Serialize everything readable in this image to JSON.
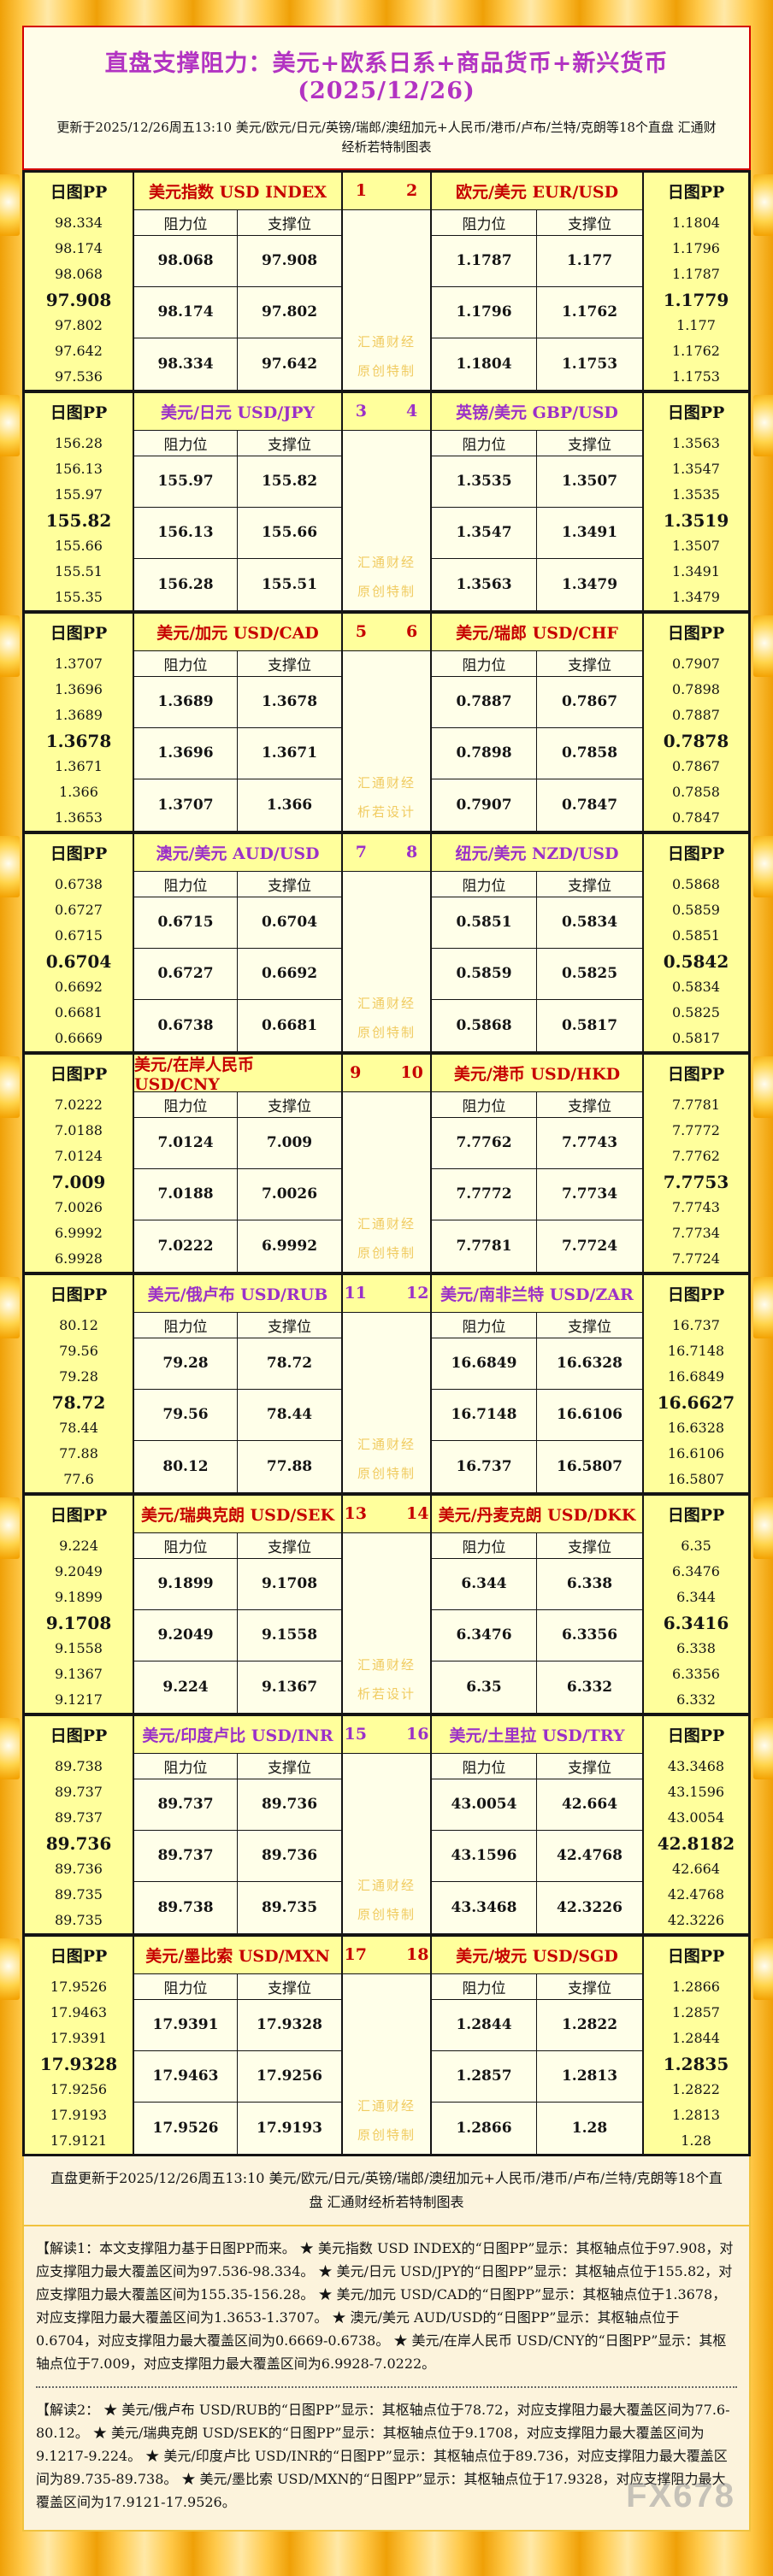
{
  "header": {
    "title": "直盘支撑阻力：美元+欧系日系+商品货币+新兴货币(2025/12/26)",
    "subtitle": "更新于2025/12/26周五13:10 美元/欧元/日元/英镑/瑞郎/澳纽加元+人民币/港币/卢布/兰特/克朗等18个直盘 汇通财经析若特制图表"
  },
  "labels": {
    "pp_header": "日图PP",
    "resistance": "阻力位",
    "support": "支撑位",
    "watermark_line1": "汇通财经"
  },
  "colors": {
    "red_accent": "#C60000",
    "purple_accent": "#9B30C8",
    "title_magenta": "#B233C2",
    "pp_column_yellow": "#FFFF9C",
    "cell_ivory": "#FFFFE9",
    "gold_watermark": "#F0CB60"
  },
  "chart_data": {
    "type": "table",
    "title": "直盘支撑阻力：美元+欧系日系+商品货币+新兴货币(2025/12/26)",
    "columns": [
      "日图PP",
      "阻力位",
      "支撑位"
    ],
    "sections": [
      {
        "num_left": "1",
        "num_right": "2",
        "accent": "red",
        "left_pair": "美元指数 USD INDEX",
        "right_pair": "欧元/美元 EUR/USD",
        "watermark_line2": "原创特制",
        "left_pp": [
          "98.334",
          "98.174",
          "98.068",
          "97.908",
          "97.802",
          "97.642",
          "97.536"
        ],
        "left_rs": [
          [
            "98.068",
            "97.908"
          ],
          [
            "98.174",
            "97.802"
          ],
          [
            "98.334",
            "97.642"
          ]
        ],
        "right_rs": [
          [
            "1.1787",
            "1.177"
          ],
          [
            "1.1796",
            "1.1762"
          ],
          [
            "1.1804",
            "1.1753"
          ]
        ],
        "right_pp": [
          "1.1804",
          "1.1796",
          "1.1787",
          "1.1779",
          "1.177",
          "1.1762",
          "1.1753"
        ]
      },
      {
        "num_left": "3",
        "num_right": "4",
        "accent": "purple",
        "left_pair": "美元/日元 USD/JPY",
        "right_pair": "英镑/美元 GBP/USD",
        "watermark_line2": "原创特制",
        "left_pp": [
          "156.28",
          "156.13",
          "155.97",
          "155.82",
          "155.66",
          "155.51",
          "155.35"
        ],
        "left_rs": [
          [
            "155.97",
            "155.82"
          ],
          [
            "156.13",
            "155.66"
          ],
          [
            "156.28",
            "155.51"
          ]
        ],
        "right_rs": [
          [
            "1.3535",
            "1.3507"
          ],
          [
            "1.3547",
            "1.3491"
          ],
          [
            "1.3563",
            "1.3479"
          ]
        ],
        "right_pp": [
          "1.3563",
          "1.3547",
          "1.3535",
          "1.3519",
          "1.3507",
          "1.3491",
          "1.3479"
        ]
      },
      {
        "num_left": "5",
        "num_right": "6",
        "accent": "red",
        "left_pair": "美元/加元 USD/CAD",
        "right_pair": "美元/瑞郎 USD/CHF",
        "watermark_line2": "析若设计",
        "left_pp": [
          "1.3707",
          "1.3696",
          "1.3689",
          "1.3678",
          "1.3671",
          "1.366",
          "1.3653"
        ],
        "left_rs": [
          [
            "1.3689",
            "1.3678"
          ],
          [
            "1.3696",
            "1.3671"
          ],
          [
            "1.3707",
            "1.366"
          ]
        ],
        "right_rs": [
          [
            "0.7887",
            "0.7867"
          ],
          [
            "0.7898",
            "0.7858"
          ],
          [
            "0.7907",
            "0.7847"
          ]
        ],
        "right_pp": [
          "0.7907",
          "0.7898",
          "0.7887",
          "0.7878",
          "0.7867",
          "0.7858",
          "0.7847"
        ]
      },
      {
        "num_left": "7",
        "num_right": "8",
        "accent": "purple",
        "left_pair": "澳元/美元 AUD/USD",
        "right_pair": "纽元/美元 NZD/USD",
        "watermark_line2": "原创特制",
        "left_pp": [
          "0.6738",
          "0.6727",
          "0.6715",
          "0.6704",
          "0.6692",
          "0.6681",
          "0.6669"
        ],
        "left_rs": [
          [
            "0.6715",
            "0.6704"
          ],
          [
            "0.6727",
            "0.6692"
          ],
          [
            "0.6738",
            "0.6681"
          ]
        ],
        "right_rs": [
          [
            "0.5851",
            "0.5834"
          ],
          [
            "0.5859",
            "0.5825"
          ],
          [
            "0.5868",
            "0.5817"
          ]
        ],
        "right_pp": [
          "0.5868",
          "0.5859",
          "0.5851",
          "0.5842",
          "0.5834",
          "0.5825",
          "0.5817"
        ]
      },
      {
        "num_left": "9",
        "num_right": "10",
        "accent": "red",
        "left_pair": "美元/在岸人民币 USD/CNY",
        "right_pair": "美元/港币 USD/HKD",
        "watermark_line2": "原创特制",
        "left_pp": [
          "7.0222",
          "7.0188",
          "7.0124",
          "7.009",
          "7.0026",
          "6.9992",
          "6.9928"
        ],
        "left_rs": [
          [
            "7.0124",
            "7.009"
          ],
          [
            "7.0188",
            "7.0026"
          ],
          [
            "7.0222",
            "6.9992"
          ]
        ],
        "right_rs": [
          [
            "7.7762",
            "7.7743"
          ],
          [
            "7.7772",
            "7.7734"
          ],
          [
            "7.7781",
            "7.7724"
          ]
        ],
        "right_pp": [
          "7.7781",
          "7.7772",
          "7.7762",
          "7.7753",
          "7.7743",
          "7.7734",
          "7.7724"
        ]
      },
      {
        "num_left": "11",
        "num_right": "12",
        "accent": "purple",
        "left_pair": "美元/俄卢布 USD/RUB",
        "right_pair": "美元/南非兰特 USD/ZAR",
        "watermark_line2": "原创特制",
        "left_pp": [
          "80.12",
          "79.56",
          "79.28",
          "78.72",
          "78.44",
          "77.88",
          "77.6"
        ],
        "left_rs": [
          [
            "79.28",
            "78.72"
          ],
          [
            "79.56",
            "78.44"
          ],
          [
            "80.12",
            "77.88"
          ]
        ],
        "right_rs": [
          [
            "16.6849",
            "16.6328"
          ],
          [
            "16.7148",
            "16.6106"
          ],
          [
            "16.737",
            "16.5807"
          ]
        ],
        "right_pp": [
          "16.737",
          "16.7148",
          "16.6849",
          "16.6627",
          "16.6328",
          "16.6106",
          "16.5807"
        ]
      },
      {
        "num_left": "13",
        "num_right": "14",
        "accent": "red",
        "left_pair": "美元/瑞典克朗 USD/SEK",
        "right_pair": "美元/丹麦克朗 USD/DKK",
        "watermark_line2": "析若设计",
        "left_pp": [
          "9.224",
          "9.2049",
          "9.1899",
          "9.1708",
          "9.1558",
          "9.1367",
          "9.1217"
        ],
        "left_rs": [
          [
            "9.1899",
            "9.1708"
          ],
          [
            "9.2049",
            "9.1558"
          ],
          [
            "9.224",
            "9.1367"
          ]
        ],
        "right_rs": [
          [
            "6.344",
            "6.338"
          ],
          [
            "6.3476",
            "6.3356"
          ],
          [
            "6.35",
            "6.332"
          ]
        ],
        "right_pp": [
          "6.35",
          "6.3476",
          "6.344",
          "6.3416",
          "6.338",
          "6.3356",
          "6.332"
        ]
      },
      {
        "num_left": "15",
        "num_right": "16",
        "accent": "purple",
        "left_pair": "美元/印度卢比 USD/INR",
        "right_pair": "美元/土里拉 USD/TRY",
        "watermark_line2": "原创特制",
        "left_pp": [
          "89.738",
          "89.737",
          "89.737",
          "89.736",
          "89.736",
          "89.735",
          "89.735"
        ],
        "left_rs": [
          [
            "89.737",
            "89.736"
          ],
          [
            "89.737",
            "89.736"
          ],
          [
            "89.738",
            "89.735"
          ]
        ],
        "right_rs": [
          [
            "43.0054",
            "42.664"
          ],
          [
            "43.1596",
            "42.4768"
          ],
          [
            "43.3468",
            "42.3226"
          ]
        ],
        "right_pp": [
          "43.3468",
          "43.1596",
          "43.0054",
          "42.8182",
          "42.664",
          "42.4768",
          "42.3226"
        ]
      },
      {
        "num_left": "17",
        "num_right": "18",
        "accent": "red",
        "left_pair": "美元/墨比索 USD/MXN",
        "right_pair": "美元/坡元 USD/SGD",
        "watermark_line2": "原创特制",
        "left_pp": [
          "17.9526",
          "17.9463",
          "17.9391",
          "17.9328",
          "17.9256",
          "17.9193",
          "17.9121"
        ],
        "left_rs": [
          [
            "17.9391",
            "17.9328"
          ],
          [
            "17.9463",
            "17.9256"
          ],
          [
            "17.9526",
            "17.9193"
          ]
        ],
        "right_rs": [
          [
            "1.2844",
            "1.2822"
          ],
          [
            "1.2857",
            "1.2813"
          ],
          [
            "1.2866",
            "1.28"
          ]
        ],
        "right_pp": [
          "1.2866",
          "1.2857",
          "1.2844",
          "1.2835",
          "1.2822",
          "1.2813",
          "1.28"
        ]
      }
    ]
  },
  "footer": {
    "update_line": "直盘更新于2025/12/26周五13:10 美元/欧元/日元/英镑/瑞郎/澳纽加元+人民币/港币/卢布/兰特/克朗等18个直盘 汇通财经析若特制图表",
    "note1": "【解读1：本文支撑阻力基于日图PP而来。 ★ 美元指数 USD INDEX的“日图PP”显示：其枢轴点位于97.908，对应支撑阻力最大覆盖区间为97.536-98.334。 ★ 美元/日元 USD/JPY的“日图PP”显示：其枢轴点位于155.82，对应支撑阻力最大覆盖区间为155.35-156.28。 ★ 美元/加元 USD/CAD的“日图PP”显示：其枢轴点位于1.3678，对应支撑阻力最大覆盖区间为1.3653-1.3707。 ★ 澳元/美元 AUD/USD的“日图PP”显示：其枢轴点位于0.6704，对应支撑阻力最大覆盖区间为0.6669-0.6738。 ★ 美元/在岸人民币 USD/CNY的“日图PP”显示：其枢轴点位于7.009，对应支撑阻力最大覆盖区间为6.9928-7.0222。",
    "note2": "【解读2： ★ 美元/俄卢布 USD/RUB的“日图PP”显示：其枢轴点位于78.72，对应支撑阻力最大覆盖区间为77.6-80.12。 ★ 美元/瑞典克朗 USD/SEK的“日图PP”显示：其枢轴点位于9.1708，对应支撑阻力最大覆盖区间为9.1217-9.224。 ★ 美元/印度卢比 USD/INR的“日图PP”显示：其枢轴点位于89.736，对应支撑阻力最大覆盖区间为89.735-89.738。 ★ 美元/墨比索 USD/MXN的“日图PP”显示：其枢轴点位于17.9328，对应支撑阻力最大覆盖区间为17.9121-17.9526。",
    "brand": "FX678"
  }
}
